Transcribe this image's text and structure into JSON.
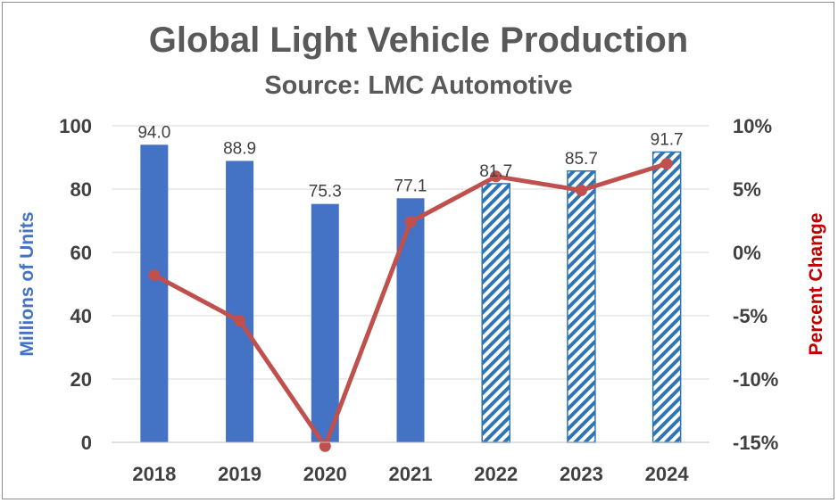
{
  "chart_data": {
    "type": "bar+line",
    "title": "Global Light Vehicle Production",
    "subtitle": "Source: LMC Automotive",
    "categories": [
      "2018",
      "2019",
      "2020",
      "2021",
      "2022",
      "2023",
      "2024"
    ],
    "ylabel": "Millions of Units",
    "y2label": "Percent Change",
    "ylim": [
      0,
      100
    ],
    "yticks": [
      "0",
      "20",
      "40",
      "60",
      "80",
      "100"
    ],
    "y2lim": [
      -15,
      10
    ],
    "y2ticks": [
      "-15%",
      "-10%",
      "-5%",
      "0%",
      "5%",
      "10%"
    ],
    "grid": true,
    "series": [
      {
        "name": "Production",
        "type": "bar",
        "axis": "left",
        "values": [
          94.0,
          88.9,
          75.3,
          77.1,
          81.7,
          85.7,
          91.7
        ],
        "labels": [
          "94.0",
          "88.9",
          "75.3",
          "77.1",
          "81.7",
          "85.7",
          "91.7"
        ],
        "forecast": [
          false,
          false,
          false,
          false,
          true,
          true,
          true
        ]
      },
      {
        "name": "Percent Change",
        "type": "line",
        "axis": "right",
        "values": [
          -1.8,
          -5.4,
          -15.3,
          2.4,
          6.0,
          4.9,
          7.0
        ]
      }
    ],
    "colors": {
      "bar": "#4472c4",
      "bar_hatch": "#2e75b6",
      "line": "#c0504d",
      "left_axis_title": "#4472c4",
      "right_axis_title": "#c00000",
      "grid": "#d9d9d9"
    }
  }
}
